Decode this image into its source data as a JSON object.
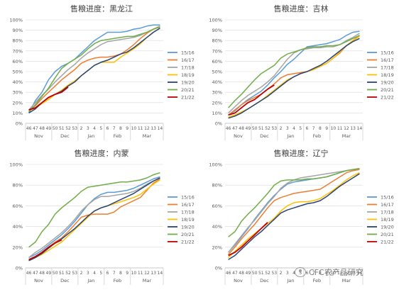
{
  "watermark": {
    "text": "CFC农产品研究",
    "icon": "wechat-icon"
  },
  "legend_series": [
    "15/16",
    "16/17",
    "17/18",
    "18/19",
    "19/20",
    "20/21",
    "21/22"
  ],
  "colors": {
    "15/16": "#5b9bd5",
    "16/17": "#ed7d31",
    "17/18": "#a5a5a5",
    "18/19": "#ffc000",
    "19/20": "#264478",
    "20/21": "#70ad47",
    "21/22": "#c00000"
  },
  "chart_data": [
    {
      "type": "line",
      "title": "售粮进度：黑龙江",
      "weeks": [
        "46",
        "47",
        "48",
        "49",
        "50",
        "51",
        "52",
        "53",
        "2",
        "3",
        "4",
        "5",
        "6",
        "7",
        "8",
        "9",
        "10",
        "11",
        "12",
        "13",
        "14"
      ],
      "months": [
        {
          "label": "Nov",
          "from": 0,
          "to": 3
        },
        {
          "label": "Dec",
          "from": 4,
          "to": 7
        },
        {
          "label": "Jan",
          "from": 8,
          "to": 11
        },
        {
          "label": "Feb",
          "from": 12,
          "to": 15
        },
        {
          "label": "Mar",
          "from": 16,
          "to": 20
        }
      ],
      "yticks": [
        "0%",
        "10%",
        "20%",
        "30%",
        "40%",
        "50%",
        "60%",
        "70%",
        "80%",
        "90%",
        "100%"
      ],
      "ylim": [
        0,
        100
      ],
      "series": [
        {
          "name": "15/16",
          "values": [
            10,
            22,
            30,
            42,
            50,
            55,
            58,
            62,
            68,
            74,
            80,
            84,
            88,
            88,
            88,
            89,
            91,
            92,
            94,
            95,
            95
          ]
        },
        {
          "name": "16/17",
          "values": [
            12,
            17,
            24,
            30,
            36,
            42,
            47,
            52,
            58,
            61,
            63,
            64,
            64,
            65,
            67,
            71,
            76,
            82,
            87,
            91,
            94
          ]
        },
        {
          "name": "17/18",
          "values": [
            13,
            20,
            27,
            33,
            40,
            46,
            52,
            57,
            63,
            68,
            72,
            76,
            79,
            80,
            81,
            82,
            83,
            85,
            88,
            91,
            94
          ]
        },
        {
          "name": "18/19",
          "values": [
            12,
            15,
            19,
            23,
            28,
            32,
            37,
            41,
            46,
            51,
            56,
            59,
            59,
            59,
            64,
            68,
            72,
            77,
            83,
            88,
            92
          ]
        },
        {
          "name": "19/20",
          "values": [
            10,
            14,
            20,
            25,
            28,
            31,
            36,
            40,
            46,
            51,
            56,
            59,
            61,
            64,
            67,
            69,
            73,
            78,
            83,
            88,
            92
          ]
        },
        {
          "name": "20/21",
          "values": [
            11,
            18,
            26,
            34,
            44,
            53,
            58,
            62,
            66,
            72,
            77,
            80,
            81,
            82,
            83,
            84,
            84,
            86,
            88,
            91,
            93
          ]
        },
        {
          "name": "21/22",
          "values": [
            13,
            15,
            20,
            25,
            28,
            30,
            35,
            null,
            null,
            null,
            null,
            null,
            null,
            null,
            null,
            null,
            null,
            null,
            null,
            null,
            null
          ]
        }
      ]
    },
    {
      "type": "line",
      "title": "售粮进度：吉林",
      "weeks": [
        "46",
        "47",
        "48",
        "49",
        "50",
        "51",
        "52",
        "53",
        "2",
        "3",
        "4",
        "5",
        "6",
        "7",
        "8",
        "9",
        "10",
        "11",
        "12",
        "13",
        "14"
      ],
      "months": [
        {
          "label": "Nov",
          "from": 0,
          "to": 3
        },
        {
          "label": "Dec",
          "from": 4,
          "to": 7
        },
        {
          "label": "Jan",
          "from": 8,
          "to": 11
        },
        {
          "label": "Feb",
          "from": 12,
          "to": 15
        },
        {
          "label": "Mar",
          "from": 16,
          "to": 20
        }
      ],
      "yticks": [
        "0%",
        "10%",
        "20%",
        "30%",
        "40%",
        "50%",
        "60%",
        "70%",
        "80%",
        "90%",
        "100%"
      ],
      "ylim": [
        0,
        100
      ],
      "series": [
        {
          "name": "15/16",
          "values": [
            8,
            12,
            18,
            23,
            27,
            31,
            37,
            44,
            50,
            57,
            62,
            68,
            74,
            75,
            76,
            77,
            79,
            81,
            85,
            88,
            89
          ]
        },
        {
          "name": "16/17",
          "values": [
            8,
            13,
            18,
            22,
            25,
            28,
            33,
            38,
            44,
            47,
            48,
            49,
            50,
            52,
            55,
            58,
            63,
            68,
            75,
            80,
            85
          ]
        },
        {
          "name": "17/18",
          "values": [
            10,
            16,
            22,
            27,
            31,
            35,
            40,
            46,
            54,
            62,
            68,
            71,
            72,
            73,
            73,
            74,
            74,
            76,
            80,
            83,
            87
          ]
        },
        {
          "name": "18/19",
          "values": [
            6,
            8,
            11,
            14,
            18,
            22,
            27,
            32,
            37,
            42,
            45,
            48,
            50,
            52,
            55,
            58,
            63,
            69,
            75,
            80,
            84
          ]
        },
        {
          "name": "19/20",
          "values": [
            5,
            7,
            10,
            14,
            18,
            22,
            26,
            31,
            36,
            41,
            45,
            48,
            50,
            53,
            56,
            60,
            65,
            70,
            75,
            79,
            82
          ]
        },
        {
          "name": "20/21",
          "values": [
            15,
            22,
            28,
            35,
            42,
            48,
            52,
            56,
            63,
            67,
            69,
            71,
            73,
            74,
            74,
            75,
            75,
            76,
            79,
            82,
            85
          ]
        },
        {
          "name": "21/22",
          "values": [
            8,
            10,
            15,
            20,
            23,
            28,
            33,
            37,
            null,
            null,
            null,
            null,
            null,
            null,
            null,
            null,
            null,
            null,
            null,
            null,
            null
          ]
        }
      ]
    },
    {
      "type": "line",
      "title": "售粮进度：内蒙",
      "weeks": [
        "46",
        "47",
        "48",
        "49",
        "50",
        "51",
        "52",
        "53",
        "2",
        "3",
        "4",
        "5",
        "6",
        "7",
        "8",
        "9",
        "10",
        "11",
        "12",
        "13",
        "14"
      ],
      "months": [
        {
          "label": "Nov",
          "from": 0,
          "to": 3
        },
        {
          "label": "Dec",
          "from": 4,
          "to": 7
        },
        {
          "label": "Jan",
          "from": 8,
          "to": 11
        },
        {
          "label": "Feb",
          "from": 12,
          "to": 15
        },
        {
          "label": "Mar",
          "from": 16,
          "to": 20
        }
      ],
      "yticks": [
        "0%",
        "20%",
        "40%",
        "60%",
        "80%",
        "100%"
      ],
      "ylim": [
        0,
        100
      ],
      "series": [
        {
          "name": "15/16",
          "values": [
            10,
            13,
            17,
            22,
            27,
            32,
            38,
            45,
            53,
            61,
            67,
            71,
            73,
            73,
            74,
            75,
            77,
            80,
            83,
            86,
            88
          ]
        },
        {
          "name": "16/17",
          "values": [
            8,
            11,
            15,
            20,
            25,
            29,
            35,
            42,
            49,
            51,
            52,
            52,
            52,
            54,
            59,
            62,
            65,
            68,
            75,
            82,
            86
          ]
        },
        {
          "name": "17/18",
          "values": [
            10,
            15,
            19,
            24,
            29,
            34,
            40,
            47,
            55,
            61,
            66,
            69,
            69,
            70,
            71,
            72,
            74,
            77,
            81,
            84,
            87
          ]
        },
        {
          "name": "18/19",
          "values": [
            7,
            10,
            13,
            17,
            21,
            25,
            31,
            37,
            43,
            49,
            55,
            58,
            60,
            62,
            64,
            66,
            68,
            71,
            76,
            81,
            85
          ]
        },
        {
          "name": "19/20",
          "values": [
            7,
            10,
            14,
            19,
            24,
            28,
            33,
            38,
            44,
            50,
            55,
            58,
            60,
            63,
            66,
            69,
            72,
            76,
            80,
            84,
            87
          ]
        },
        {
          "name": "20/21",
          "values": [
            20,
            25,
            35,
            42,
            52,
            58,
            63,
            68,
            74,
            78,
            79,
            80,
            81,
            82,
            83,
            83,
            84,
            85,
            87,
            90,
            92
          ]
        },
        {
          "name": "21/22",
          "values": [
            8,
            11,
            15,
            20,
            24,
            27,
            null,
            null,
            null,
            null,
            null,
            null,
            null,
            null,
            null,
            null,
            null,
            null,
            null,
            null,
            null
          ]
        }
      ]
    },
    {
      "type": "line",
      "title": "售粮进度：辽宁",
      "weeks": [
        "46",
        "47",
        "48",
        "49",
        "50",
        "51",
        "52",
        "53",
        "2",
        "3",
        "4",
        "5",
        "6",
        "7",
        "8",
        "9",
        "10",
        "11",
        "12",
        "13",
        "14"
      ],
      "months": [
        {
          "label": "Nov",
          "from": 0,
          "to": 3
        },
        {
          "label": "Dec",
          "from": 4,
          "to": 7
        },
        {
          "label": "Jan",
          "from": 8,
          "to": 11
        },
        {
          "label": "Feb",
          "from": 12,
          "to": 15
        },
        {
          "label": "Mar",
          "from": 16,
          "to": 20
        }
      ],
      "yticks": [
        "0%",
        "20%",
        "40%",
        "60%",
        "80%",
        "100%"
      ],
      "ylim": [
        0,
        100
      ],
      "series": [
        {
          "name": "15/16",
          "values": [
            15,
            22,
            30,
            38,
            47,
            55,
            63,
            70,
            76,
            81,
            83,
            84,
            85,
            86,
            87,
            88,
            90,
            92,
            94,
            95,
            96
          ]
        },
        {
          "name": "16/17",
          "values": [
            13,
            20,
            28,
            35,
            42,
            50,
            58,
            65,
            68,
            70,
            72,
            73,
            74,
            75,
            76,
            80,
            84,
            88,
            92,
            94,
            95
          ]
        },
        {
          "name": "17/18",
          "values": [
            15,
            23,
            31,
            39,
            46,
            54,
            62,
            69,
            77,
            82,
            85,
            87,
            88,
            89,
            90,
            91,
            92,
            93,
            94,
            95,
            96
          ]
        },
        {
          "name": "18/19",
          "values": [
            10,
            16,
            22,
            28,
            33,
            38,
            43,
            48,
            55,
            60,
            63,
            64,
            64,
            65,
            67,
            71,
            75,
            80,
            85,
            89,
            92
          ]
        },
        {
          "name": "19/20",
          "values": [
            8,
            12,
            18,
            24,
            30,
            35,
            41,
            47,
            53,
            56,
            58,
            60,
            62,
            63,
            65,
            69,
            74,
            79,
            83,
            87,
            91
          ]
        },
        {
          "name": "20/21",
          "values": [
            30,
            35,
            45,
            52,
            58,
            65,
            72,
            80,
            84,
            85,
            85,
            85,
            86,
            86,
            87,
            88,
            90,
            92,
            94,
            95,
            96
          ]
        },
        {
          "name": "21/22",
          "values": [
            12,
            15,
            20,
            26,
            32,
            38,
            44,
            null,
            null,
            null,
            null,
            null,
            null,
            null,
            null,
            null,
            null,
            null,
            null,
            null,
            null
          ]
        }
      ]
    }
  ]
}
